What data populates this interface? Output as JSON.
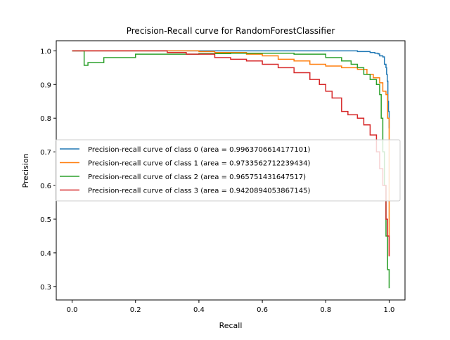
{
  "chart_data": {
    "type": "line",
    "title": "Precision-Recall curve for RandomForestClassifier",
    "xlabel": "Recall",
    "ylabel": "Precision",
    "xlim": [
      -0.05,
      1.05
    ],
    "ylim": [
      0.26,
      1.03
    ],
    "xticks": [
      0.0,
      0.2,
      0.4,
      0.6,
      0.8,
      1.0
    ],
    "xtick_labels": [
      "0.0",
      "0.2",
      "0.4",
      "0.6",
      "0.8",
      "1.0"
    ],
    "yticks": [
      0.3,
      0.4,
      0.5,
      0.6,
      0.7,
      0.8,
      0.9,
      1.0
    ],
    "ytick_labels": [
      "0.3",
      "0.4",
      "0.5",
      "0.6",
      "0.7",
      "0.8",
      "0.9",
      "1.0"
    ],
    "grid": false,
    "legend_position": "center-left",
    "series": [
      {
        "name": "Precision-recall curve of class 0 (area = 0.9963706614177101)",
        "color": "#1f77b4",
        "x": [
          0.0,
          0.28,
          0.5,
          0.75,
          0.88,
          0.9,
          0.93,
          0.94,
          0.95,
          0.955,
          0.96,
          0.965,
          0.97,
          0.975,
          0.98,
          0.985,
          0.99,
          0.992,
          0.994,
          0.996,
          0.998,
          1.0
        ],
        "y": [
          1.0,
          1.0,
          1.0,
          1.0,
          1.0,
          0.998,
          0.998,
          0.995,
          0.995,
          0.993,
          0.993,
          0.991,
          0.985,
          0.985,
          0.982,
          0.96,
          0.95,
          0.93,
          0.91,
          0.85,
          0.82,
          0.77
        ]
      },
      {
        "name": "Precision-recall curve of class 1 (area = 0.9733562712239434)",
        "color": "#ff7f0e",
        "x": [
          0.0,
          0.2,
          0.4,
          0.45,
          0.55,
          0.6,
          0.65,
          0.7,
          0.75,
          0.8,
          0.85,
          0.9,
          0.93,
          0.95,
          0.97,
          0.98,
          0.99,
          0.995,
          1.0
        ],
        "y": [
          1.0,
          1.0,
          0.998,
          0.995,
          0.99,
          0.985,
          0.975,
          0.97,
          0.96,
          0.955,
          0.95,
          0.945,
          0.93,
          0.92,
          0.905,
          0.88,
          0.87,
          0.8,
          0.39
        ]
      },
      {
        "name": "Precision-recall curve of class 2 (area = 0.965751431647517)",
        "color": "#2ca02c",
        "x": [
          0.0,
          0.037,
          0.038,
          0.05,
          0.1,
          0.2,
          0.3,
          0.4,
          0.5,
          0.6,
          0.7,
          0.75,
          0.8,
          0.85,
          0.88,
          0.9,
          0.92,
          0.94,
          0.96,
          0.97,
          0.975,
          0.98,
          0.985,
          0.99,
          0.995,
          1.0
        ],
        "y": [
          1.0,
          1.0,
          0.957,
          0.965,
          0.98,
          0.99,
          0.99,
          0.992,
          0.993,
          0.993,
          0.99,
          0.99,
          0.98,
          0.97,
          0.96,
          0.95,
          0.93,
          0.915,
          0.9,
          0.87,
          0.8,
          0.7,
          0.6,
          0.45,
          0.35,
          0.295
        ]
      },
      {
        "name": "Precision-recall curve of class 3 (area = 0.9420894053867145)",
        "color": "#d62728",
        "x": [
          0.0,
          0.1,
          0.2,
          0.3,
          0.36,
          0.45,
          0.5,
          0.55,
          0.6,
          0.65,
          0.7,
          0.75,
          0.78,
          0.8,
          0.82,
          0.85,
          0.87,
          0.9,
          0.92,
          0.94,
          0.96,
          0.97,
          0.98,
          0.99,
          0.995,
          1.0
        ],
        "y": [
          1.0,
          1.0,
          1.0,
          0.995,
          0.99,
          0.98,
          0.975,
          0.97,
          0.96,
          0.95,
          0.935,
          0.915,
          0.9,
          0.88,
          0.86,
          0.82,
          0.81,
          0.8,
          0.78,
          0.75,
          0.7,
          0.65,
          0.6,
          0.5,
          0.45,
          0.39
        ]
      }
    ]
  }
}
